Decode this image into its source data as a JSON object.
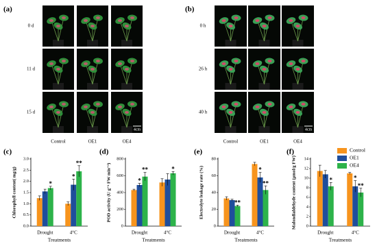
{
  "panels": [
    {
      "label": "(a)",
      "rows": [
        "0 d",
        "11 d",
        "15 d"
      ],
      "columns": [
        "Control",
        "OE1",
        "OE4"
      ],
      "scale": "4cm"
    },
    {
      "label": "(b)",
      "rows": [
        "0 h",
        "26 h",
        "40 h"
      ],
      "columns": [
        "Control",
        "OE1",
        "OE4"
      ],
      "scale": "4cm"
    }
  ],
  "chart_data": [
    {
      "type": "bar",
      "label": "(c)",
      "y_label": "Chlorophyll content( mg/g)",
      "x_label": "Treatments",
      "categories": [
        "Drought",
        "4°C"
      ],
      "series": [
        {
          "color": "#f7941d",
          "values": [
            1.25,
            1.0
          ],
          "errors": [
            0.1,
            0.08
          ],
          "significance": [
            null,
            null
          ]
        },
        {
          "color": "#1f4e9c",
          "values": [
            1.55,
            1.85
          ],
          "errors": [
            0.1,
            0.25
          ],
          "significance": [
            null,
            "*"
          ]
        },
        {
          "color": "#2db34a",
          "values": [
            1.7,
            2.45
          ],
          "errors": [
            0.08,
            0.25
          ],
          "significance": [
            "*",
            "**"
          ]
        }
      ],
      "ylim": [
        0,
        3
      ],
      "yticks": [
        {
          "value": 0,
          "label": "0.0"
        },
        {
          "value": 0.5,
          "label": "0.5"
        },
        {
          "value": 1,
          "label": "1.0"
        },
        {
          "value": 1.5,
          "label": "1.5"
        },
        {
          "value": 2,
          "label": "2.0"
        },
        {
          "value": 2.5,
          "label": "2.5"
        },
        {
          "value": 3,
          "label": "3.0"
        }
      ]
    },
    {
      "type": "bar",
      "label": "(d)",
      "y_label": "POD activity (U g⁻¹ FW min⁻¹)",
      "x_label": "Treatments",
      "categories": [
        "Drought",
        "4°C"
      ],
      "series": [
        {
          "color": "#f7941d",
          "values": [
            430,
            520
          ],
          "errors": [
            10,
            45
          ],
          "significance": [
            null,
            null
          ]
        },
        {
          "color": "#1f4e9c",
          "values": [
            490,
            555
          ],
          "errors": [
            20,
            70
          ],
          "significance": [
            "*",
            null
          ]
        },
        {
          "color": "#2db34a",
          "values": [
            590,
            630
          ],
          "errors": [
            50,
            20
          ],
          "significance": [
            "**",
            "*"
          ]
        }
      ],
      "ylim": [
        0,
        800
      ],
      "yticks": [
        0,
        200,
        400,
        600,
        800
      ]
    },
    {
      "type": "bar",
      "label": "(e)",
      "y_label": "Electrolyte leakage rate (%)",
      "x_label": "Treatments",
      "categories": [
        "Drought",
        "4°C"
      ],
      "series": [
        {
          "color": "#f7941d",
          "values": [
            33,
            74
          ],
          "errors": [
            2,
            2
          ],
          "significance": [
            null,
            null
          ]
        },
        {
          "color": "#1f4e9c",
          "values": [
            31,
            58
          ],
          "errors": [
            1,
            6
          ],
          "significance": [
            null,
            "*"
          ]
        },
        {
          "color": "#2db34a",
          "values": [
            24,
            43
          ],
          "errors": [
            1,
            5
          ],
          "significance": [
            "**",
            "**"
          ]
        }
      ],
      "ylim": [
        0,
        80
      ],
      "yticks": [
        0,
        20,
        40,
        60,
        80
      ]
    },
    {
      "type": "bar",
      "label": "(f)",
      "y_label": "Malondialdehyde content (μmol/g FW)",
      "x_label": "Treatments",
      "categories": [
        "Drought",
        "4°C"
      ],
      "series": [
        {
          "name": "Control",
          "color": "#f7941d",
          "values": [
            11.5,
            11
          ],
          "errors": [
            1.2,
            0.2
          ],
          "significance": [
            null,
            null
          ]
        },
        {
          "name": "OE1",
          "color": "#1f4e9c",
          "values": [
            10.8,
            8.3
          ],
          "errors": [
            0.8,
            1.2
          ],
          "significance": [
            null,
            "*"
          ]
        },
        {
          "name": "OE4",
          "color": "#2db34a",
          "values": [
            8.3,
            7
          ],
          "errors": [
            0.8,
            0.9
          ],
          "significance": [
            "*",
            "**"
          ]
        }
      ],
      "ylim": [
        0,
        14
      ],
      "yticks": [
        0,
        2,
        4,
        6,
        8,
        10,
        12,
        14
      ]
    }
  ]
}
